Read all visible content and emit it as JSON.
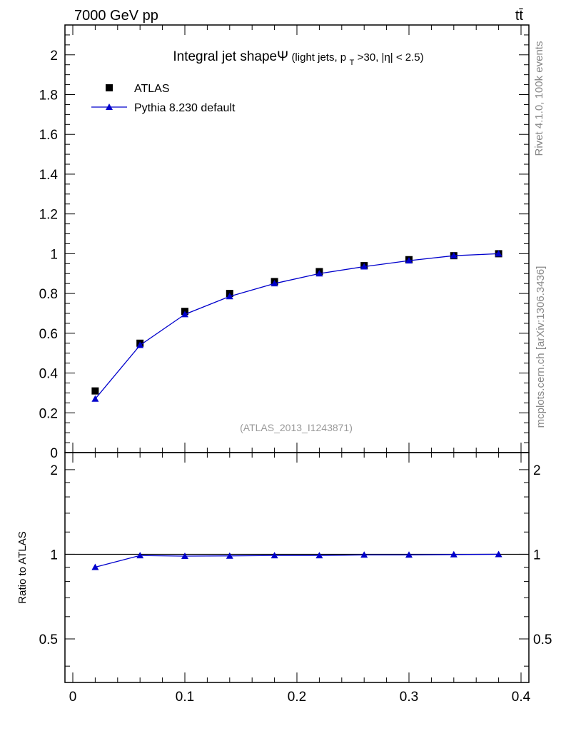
{
  "header": {
    "energy_label": "7000 GeV pp",
    "process_label": "tt̄",
    "rivet_label": "Rivet 4.1.0,  100k events",
    "source_label": "mcplots.cern.ch [arXiv:1306.3436]",
    "analysis_label": "(ATLAS_2013_I1243871)"
  },
  "chart_data": [
    {
      "type": "line",
      "title": "Integral jet shapeΨ",
      "title_cuts": {
        "prefix": " (light jets, p",
        "subscript": "T",
        "suffix": ">30, |η| < 2.5)"
      },
      "xlabel": "",
      "ylabel": "",
      "xlim": [
        -0.007,
        0.407
      ],
      "ylim": [
        0,
        2.15
      ],
      "x_ticks": [
        "0",
        "0.1",
        "0.2",
        "0.3",
        "0.4"
      ],
      "y_ticks": [
        "0",
        "0.2",
        "0.4",
        "0.6",
        "0.8",
        "1",
        "1.2",
        "1.4",
        "1.6",
        "1.8",
        "2"
      ],
      "legend_position": "top-left",
      "x": [
        0.02,
        0.06,
        0.1,
        0.14,
        0.18,
        0.22,
        0.26,
        0.3,
        0.34,
        0.38
      ],
      "series": [
        {
          "name": "ATLAS",
          "marker": "square",
          "color": "#000000",
          "values": [
            0.31,
            0.55,
            0.71,
            0.8,
            0.86,
            0.91,
            0.94,
            0.97,
            0.99,
            1.0
          ]
        },
        {
          "name": "Pythia 8.230 default",
          "marker": "triangle",
          "color": "#0000cc",
          "values": [
            0.27,
            0.54,
            0.695,
            0.785,
            0.85,
            0.9,
            0.935,
            0.965,
            0.99,
            1.0
          ]
        }
      ]
    },
    {
      "type": "line",
      "title": "",
      "xlabel": "",
      "ylabel": "Ratio to ATLAS",
      "xlim": [
        -0.007,
        0.407
      ],
      "ylim": [
        0.35,
        2.3
      ],
      "scale": "log",
      "x_ticks": [
        "0",
        "0.1",
        "0.2",
        "0.3",
        "0.4"
      ],
      "y_ticks": [
        "0.5",
        "1",
        "2"
      ],
      "reference_line": 1,
      "x": [
        0.02,
        0.06,
        0.1,
        0.14,
        0.18,
        0.22,
        0.26,
        0.3,
        0.34,
        0.38
      ],
      "series": [
        {
          "name": "Pythia 8.230 default",
          "marker": "triangle",
          "color": "#0000cc",
          "values": [
            0.9,
            0.99,
            0.985,
            0.987,
            0.99,
            0.99,
            0.995,
            0.995,
            0.998,
            1.0
          ]
        }
      ]
    }
  ]
}
